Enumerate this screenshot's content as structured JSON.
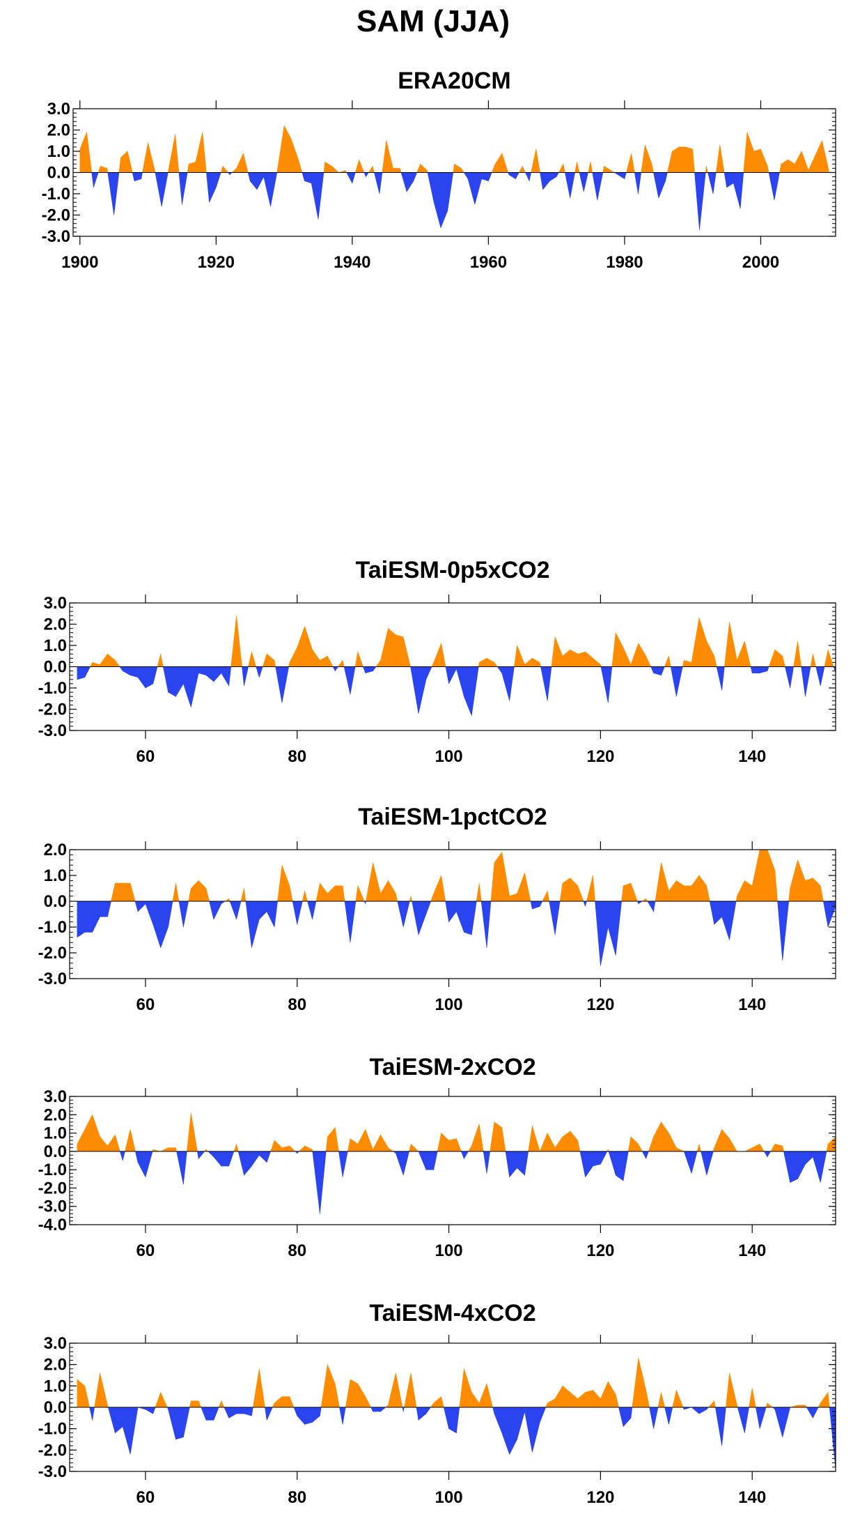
{
  "figure_title": "SAM (JJA)",
  "colors": {
    "positive": "#ff8c00",
    "negative": "#2a44f0",
    "frame": "#000000"
  },
  "chart_data": [
    {
      "type": "area",
      "title": "ERA20CM",
      "xlabel": "",
      "ylabel": "",
      "xlim": [
        1899,
        2011
      ],
      "ylim": [
        -3.0,
        3.0
      ],
      "xticks": [
        1900,
        1920,
        1940,
        1960,
        1980,
        2000
      ],
      "yticks": [
        "3.0",
        "2.0",
        "1.0",
        "0.0",
        "-1.0",
        "-2.0",
        "-3.0"
      ],
      "grid": false,
      "x": [
        1900,
        1901,
        1902,
        1903,
        1904,
        1905,
        1906,
        1907,
        1908,
        1909,
        1910,
        1911,
        1912,
        1913,
        1914,
        1915,
        1916,
        1917,
        1918,
        1919,
        1920,
        1921,
        1922,
        1923,
        1924,
        1925,
        1926,
        1927,
        1928,
        1929,
        1930,
        1931,
        1932,
        1933,
        1934,
        1935,
        1936,
        1937,
        1938,
        1939,
        1940,
        1941,
        1942,
        1943,
        1944,
        1945,
        1946,
        1947,
        1948,
        1949,
        1950,
        1951,
        1952,
        1953,
        1954,
        1955,
        1956,
        1957,
        1958,
        1959,
        1960,
        1961,
        1962,
        1963,
        1964,
        1965,
        1966,
        1967,
        1968,
        1969,
        1970,
        1971,
        1972,
        1973,
        1974,
        1975,
        1976,
        1977,
        1978,
        1979,
        1980,
        1981,
        1982,
        1983,
        1984,
        1985,
        1986,
        1987,
        1988,
        1989,
        1990,
        1991,
        1992,
        1993,
        1994,
        1995,
        1996,
        1997,
        1998,
        1999,
        2000,
        2001,
        2002,
        2003,
        2004,
        2005,
        2006,
        2007,
        2008,
        2009,
        2010
      ],
      "values": [
        1.1,
        1.9,
        -0.7,
        0.3,
        0.2,
        -2.0,
        0.7,
        1.0,
        -0.4,
        -0.3,
        1.4,
        0.1,
        -1.6,
        0.1,
        1.8,
        -1.5,
        0.4,
        0.5,
        1.9,
        -1.4,
        -0.7,
        0.3,
        -0.1,
        0.2,
        0.9,
        -0.4,
        -0.8,
        -0.2,
        -1.6,
        0.1,
        2.2,
        1.6,
        0.7,
        -0.4,
        -0.5,
        -2.2,
        0.5,
        0.3,
        0.0,
        0.1,
        -0.5,
        0.6,
        -0.2,
        0.3,
        -1.0,
        1.5,
        0.2,
        0.2,
        -0.9,
        -0.4,
        0.4,
        0.1,
        -1.4,
        -2.6,
        -1.8,
        0.4,
        0.2,
        -0.3,
        -1.5,
        -0.3,
        -0.4,
        0.4,
        0.9,
        -0.1,
        -0.3,
        0.3,
        -0.4,
        1.1,
        -0.8,
        -0.4,
        -0.2,
        0.4,
        -1.2,
        0.5,
        -0.9,
        0.5,
        -1.3,
        0.3,
        0.1,
        -0.1,
        -0.3,
        0.9,
        -1.0,
        1.3,
        0.4,
        -1.2,
        -0.4,
        1.0,
        1.2,
        1.2,
        1.1,
        -2.7,
        0.3,
        -1.0,
        1.3,
        -0.7,
        -0.5,
        -1.7,
        1.9,
        1.0,
        1.1,
        0.3,
        -1.3,
        0.4,
        0.6,
        0.4,
        1.0,
        0.1,
        0.8,
        1.5,
        0.1
      ]
    },
    {
      "type": "area",
      "title": "TaiESM-0p5xCO2",
      "xlabel": "",
      "ylabel": "",
      "xlim": [
        50,
        151
      ],
      "ylim": [
        -3.0,
        3.0
      ],
      "xticks": [
        60,
        80,
        100,
        120,
        140
      ],
      "yticks": [
        "3.0",
        "2.0",
        "1.0",
        "0.0",
        "-1.0",
        "-2.0",
        "-3.0"
      ],
      "grid": false,
      "x": [
        51,
        52,
        53,
        54,
        55,
        56,
        57,
        58,
        59,
        60,
        61,
        62,
        63,
        64,
        65,
        66,
        67,
        68,
        69,
        70,
        71,
        72,
        73,
        74,
        75,
        76,
        77,
        78,
        79,
        80,
        81,
        82,
        83,
        84,
        85,
        86,
        87,
        88,
        89,
        90,
        91,
        92,
        93,
        94,
        95,
        96,
        97,
        98,
        99,
        100,
        101,
        102,
        103,
        104,
        105,
        106,
        107,
        108,
        109,
        110,
        111,
        112,
        113,
        114,
        115,
        116,
        117,
        118,
        119,
        120,
        121,
        122,
        123,
        124,
        125,
        126,
        127,
        128,
        129,
        130,
        131,
        132,
        133,
        134,
        135,
        136,
        137,
        138,
        139,
        140,
        141,
        142,
        143,
        144,
        145,
        146,
        147,
        148,
        149,
        150,
        151
      ],
      "values": [
        -0.6,
        -0.5,
        0.2,
        0.1,
        0.6,
        0.3,
        -0.2,
        -0.4,
        -0.5,
        -1.0,
        -0.8,
        0.6,
        -1.2,
        -1.4,
        -0.8,
        -1.9,
        -0.3,
        -0.4,
        -0.7,
        -0.3,
        -0.9,
        2.4,
        -0.9,
        0.7,
        -0.5,
        0.6,
        0.3,
        -1.7,
        0.2,
        0.9,
        1.9,
        0.8,
        0.3,
        0.5,
        -0.2,
        0.3,
        -1.3,
        0.7,
        -0.3,
        -0.2,
        0.3,
        1.8,
        1.5,
        1.4,
        -0.1,
        -2.2,
        -0.6,
        0.2,
        1.1,
        -0.8,
        -0.1,
        -1.4,
        -2.3,
        0.2,
        0.4,
        0.2,
        -0.3,
        -1.6,
        1.0,
        0.1,
        0.4,
        0.2,
        -1.6,
        1.4,
        0.5,
        0.8,
        0.6,
        0.7,
        0.4,
        0.1,
        -1.7,
        1.6,
        0.9,
        0.1,
        1.1,
        0.5,
        -0.3,
        -0.4,
        0.5,
        -1.4,
        0.3,
        0.2,
        2.3,
        1.2,
        0.5,
        -1.1,
        2.1,
        0.3,
        1.2,
        -0.3,
        -0.3,
        -0.2,
        0.8,
        0.5,
        -1.0,
        1.2,
        -1.4,
        0.6,
        -0.9,
        0.8,
        -0.3
      ]
    },
    {
      "type": "area",
      "title": "TaiESM-1pctCO2",
      "xlabel": "",
      "ylabel": "",
      "xlim": [
        50,
        151
      ],
      "ylim": [
        -3.0,
        2.0
      ],
      "xticks": [
        60,
        80,
        100,
        120,
        140
      ],
      "yticks": [
        "2.0",
        "1.0",
        "0.0",
        "-1.0",
        "-2.0",
        "-3.0"
      ],
      "grid": false,
      "x": [
        51,
        52,
        53,
        54,
        55,
        56,
        57,
        58,
        59,
        60,
        61,
        62,
        63,
        64,
        65,
        66,
        67,
        68,
        69,
        70,
        71,
        72,
        73,
        74,
        75,
        76,
        77,
        78,
        79,
        80,
        81,
        82,
        83,
        84,
        85,
        86,
        87,
        88,
        89,
        90,
        91,
        92,
        93,
        94,
        95,
        96,
        97,
        98,
        99,
        100,
        101,
        102,
        103,
        104,
        105,
        106,
        107,
        108,
        109,
        110,
        111,
        112,
        113,
        114,
        115,
        116,
        117,
        118,
        119,
        120,
        121,
        122,
        123,
        124,
        125,
        126,
        127,
        128,
        129,
        130,
        131,
        132,
        133,
        134,
        135,
        136,
        137,
        138,
        139,
        140,
        141,
        142,
        143,
        144,
        145,
        146,
        147,
        148,
        149,
        150,
        151
      ],
      "values": [
        -1.4,
        -1.2,
        -1.2,
        -0.6,
        -0.6,
        0.7,
        0.7,
        0.7,
        -0.4,
        -0.1,
        -0.9,
        -1.8,
        -1.0,
        0.7,
        -1.0,
        0.5,
        0.8,
        0.5,
        -0.7,
        -0.1,
        0.1,
        -0.7,
        0.5,
        -1.8,
        -0.7,
        -0.4,
        -1.0,
        1.4,
        0.6,
        -0.9,
        0.4,
        -0.7,
        0.7,
        0.3,
        0.6,
        0.6,
        -1.6,
        0.6,
        -0.1,
        1.5,
        0.3,
        0.8,
        0.3,
        -1.0,
        0.2,
        -1.3,
        -0.5,
        0.3,
        1.0,
        -0.8,
        -0.4,
        -1.2,
        -1.3,
        0.7,
        -1.8,
        1.5,
        1.9,
        0.2,
        0.3,
        1.1,
        -0.3,
        -0.2,
        0.4,
        -1.3,
        0.7,
        0.9,
        0.6,
        -0.2,
        1.0,
        -2.5,
        -1.0,
        -2.1,
        0.6,
        0.7,
        -0.1,
        0.1,
        -0.4,
        1.5,
        0.4,
        0.8,
        0.6,
        0.6,
        1.0,
        0.6,
        -0.9,
        -0.6,
        -1.5,
        0.2,
        0.8,
        0.6,
        2.0,
        2.0,
        1.2,
        -2.3,
        0.5,
        1.6,
        0.8,
        0.9,
        0.6,
        -1.0,
        -0.2
      ]
    },
    {
      "type": "area",
      "title": "TaiESM-2xCO2",
      "xlabel": "",
      "ylabel": "",
      "xlim": [
        50,
        151
      ],
      "ylim": [
        -4.0,
        3.0
      ],
      "xticks": [
        60,
        80,
        100,
        120,
        140
      ],
      "yticks": [
        "3.0",
        "2.0",
        "1.0",
        "0.0",
        "-1.0",
        "-2.0",
        "-3.0",
        "-4.0"
      ],
      "grid": false,
      "x": [
        51,
        52,
        53,
        54,
        55,
        56,
        57,
        58,
        59,
        60,
        61,
        62,
        63,
        64,
        65,
        66,
        67,
        68,
        69,
        70,
        71,
        72,
        73,
        74,
        75,
        76,
        77,
        78,
        79,
        80,
        81,
        82,
        83,
        84,
        85,
        86,
        87,
        88,
        89,
        90,
        91,
        92,
        93,
        94,
        95,
        96,
        97,
        98,
        99,
        100,
        101,
        102,
        103,
        104,
        105,
        106,
        107,
        108,
        109,
        110,
        111,
        112,
        113,
        114,
        115,
        116,
        117,
        118,
        119,
        120,
        121,
        122,
        123,
        124,
        125,
        126,
        127,
        128,
        129,
        130,
        131,
        132,
        133,
        134,
        135,
        136,
        137,
        138,
        139,
        140,
        141,
        142,
        143,
        144,
        145,
        146,
        147,
        148,
        149,
        150,
        151
      ],
      "values": [
        0.4,
        1.2,
        2.0,
        0.8,
        0.3,
        0.9,
        -0.5,
        1.2,
        -0.6,
        -1.4,
        0.1,
        0.0,
        0.2,
        0.2,
        -1.8,
        2.1,
        -0.4,
        0.1,
        -0.3,
        -0.8,
        -0.8,
        0.4,
        -1.3,
        -0.8,
        -0.2,
        -0.6,
        0.6,
        0.2,
        0.3,
        -0.1,
        0.3,
        0.1,
        -3.4,
        0.8,
        1.3,
        -1.4,
        0.7,
        0.4,
        1.2,
        0.1,
        0.9,
        0.2,
        -0.1,
        -1.3,
        0.4,
        0.0,
        -1.0,
        -1.0,
        1.0,
        0.6,
        0.7,
        -0.4,
        0.3,
        1.5,
        -1.2,
        1.6,
        1.3,
        -1.4,
        -0.9,
        -1.3,
        1.4,
        0.0,
        1.0,
        0.2,
        0.8,
        1.1,
        0.6,
        -1.4,
        -0.8,
        -0.7,
        0.1,
        -1.3,
        -1.6,
        0.8,
        0.4,
        -0.4,
        0.8,
        1.6,
        1.0,
        0.2,
        0.0,
        -1.2,
        0.4,
        -1.3,
        0.2,
        1.2,
        0.7,
        0.0,
        0.0,
        0.2,
        0.4,
        -0.3,
        0.4,
        0.3,
        -1.7,
        -1.5,
        -0.7,
        -0.3,
        -1.7,
        0.4,
        0.8
      ]
    },
    {
      "type": "area",
      "title": "TaiESM-4xCO2",
      "xlabel": "",
      "ylabel": "",
      "xlim": [
        50,
        151
      ],
      "ylim": [
        -3.0,
        3.0
      ],
      "xticks": [
        60,
        80,
        100,
        120,
        140
      ],
      "yticks": [
        "3.0",
        "2.0",
        "1.0",
        "0.0",
        "-1.0",
        "-2.0",
        "-3.0"
      ],
      "grid": false,
      "x": [
        51,
        52,
        53,
        54,
        55,
        56,
        57,
        58,
        59,
        60,
        61,
        62,
        63,
        64,
        65,
        66,
        67,
        68,
        69,
        70,
        71,
        72,
        73,
        74,
        75,
        76,
        77,
        78,
        79,
        80,
        81,
        82,
        83,
        84,
        85,
        86,
        87,
        88,
        89,
        90,
        91,
        92,
        93,
        94,
        95,
        96,
        97,
        98,
        99,
        100,
        101,
        102,
        103,
        104,
        105,
        106,
        107,
        108,
        109,
        110,
        111,
        112,
        113,
        114,
        115,
        116,
        117,
        118,
        119,
        120,
        121,
        122,
        123,
        124,
        125,
        126,
        127,
        128,
        129,
        130,
        131,
        132,
        133,
        134,
        135,
        136,
        137,
        138,
        139,
        140,
        141,
        142,
        143,
        144,
        145,
        146,
        147,
        148,
        149,
        150,
        151
      ],
      "values": [
        1.3,
        1.0,
        -0.6,
        1.6,
        0.1,
        -1.2,
        -0.9,
        -2.2,
        0.0,
        -0.1,
        -0.3,
        0.7,
        -0.1,
        -1.5,
        -1.4,
        0.3,
        0.3,
        -0.6,
        -0.6,
        0.3,
        -0.5,
        -0.3,
        -0.3,
        -0.4,
        1.8,
        -0.6,
        0.2,
        0.5,
        0.5,
        -0.4,
        -0.8,
        -0.7,
        -0.4,
        2.0,
        1.1,
        -0.8,
        1.3,
        1.1,
        0.5,
        -0.2,
        -0.2,
        0.1,
        1.6,
        -0.2,
        1.6,
        -0.6,
        -0.3,
        0.2,
        0.5,
        -1.0,
        -1.2,
        1.8,
        0.7,
        0.2,
        1.1,
        -0.3,
        -1.2,
        -2.2,
        -1.5,
        -0.2,
        -2.1,
        -0.7,
        0.2,
        0.4,
        1.0,
        0.7,
        0.4,
        0.7,
        0.8,
        0.4,
        1.2,
        0.6,
        -0.9,
        -0.5,
        2.3,
        0.8,
        -1.0,
        0.7,
        -0.8,
        0.8,
        -0.1,
        0.0,
        -0.3,
        -0.1,
        0.3,
        -1.8,
        1.6,
        0.1,
        -1.2,
        0.9,
        -1.0,
        0.2,
        -0.1,
        -1.4,
        0.0,
        0.1,
        0.1,
        -0.5,
        0.2,
        0.7,
        -2.9
      ]
    }
  ]
}
